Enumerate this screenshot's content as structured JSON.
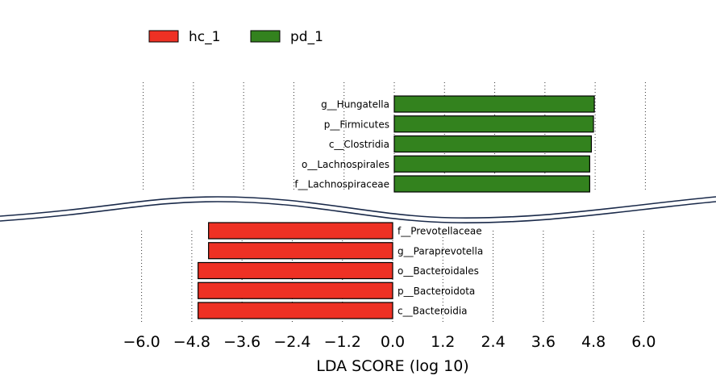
{
  "chart_data": {
    "type": "bar",
    "orientation": "horizontal",
    "xlabel": "LDA SCORE (log 10)",
    "xticks": [
      -6.0,
      -4.8,
      -3.6,
      -2.4,
      -1.2,
      0.0,
      1.2,
      2.4,
      3.6,
      4.8,
      6.0
    ],
    "xtick_labels": [
      "−6.0",
      "−4.8",
      "−3.6",
      "−2.4",
      "−1.2",
      "0.0",
      "1.2",
      "2.4",
      "3.6",
      "4.8",
      "6.0"
    ],
    "grid": "vertical-dotted",
    "axis_break": true,
    "legend": [
      {
        "name": "hc_1",
        "color": "#ee3124"
      },
      {
        "name": "pd_1",
        "color": "#33821e"
      }
    ],
    "top_panel": [
      {
        "label": "g__Hungatella",
        "value": 4.78,
        "group": "pd_1"
      },
      {
        "label": "p__Firmicutes",
        "value": 4.76,
        "group": "pd_1"
      },
      {
        "label": "c__Clostridia",
        "value": 4.71,
        "group": "pd_1"
      },
      {
        "label": "o__Lachnospirales",
        "value": 4.67,
        "group": "pd_1"
      },
      {
        "label": "f__Lachnospiraceae",
        "value": 4.67,
        "group": "pd_1"
      }
    ],
    "bottom_panel": [
      {
        "label": "f__Prevotellaceae",
        "value": -4.4,
        "group": "hc_1"
      },
      {
        "label": "g__Paraprevotella",
        "value": -4.4,
        "group": "hc_1"
      },
      {
        "label": "o__Bacteroidales",
        "value": -4.65,
        "group": "hc_1"
      },
      {
        "label": "p__Bacteroidota",
        "value": -4.65,
        "group": "hc_1"
      },
      {
        "label": "c__Bacteroidia",
        "value": -4.65,
        "group": "hc_1"
      }
    ]
  }
}
